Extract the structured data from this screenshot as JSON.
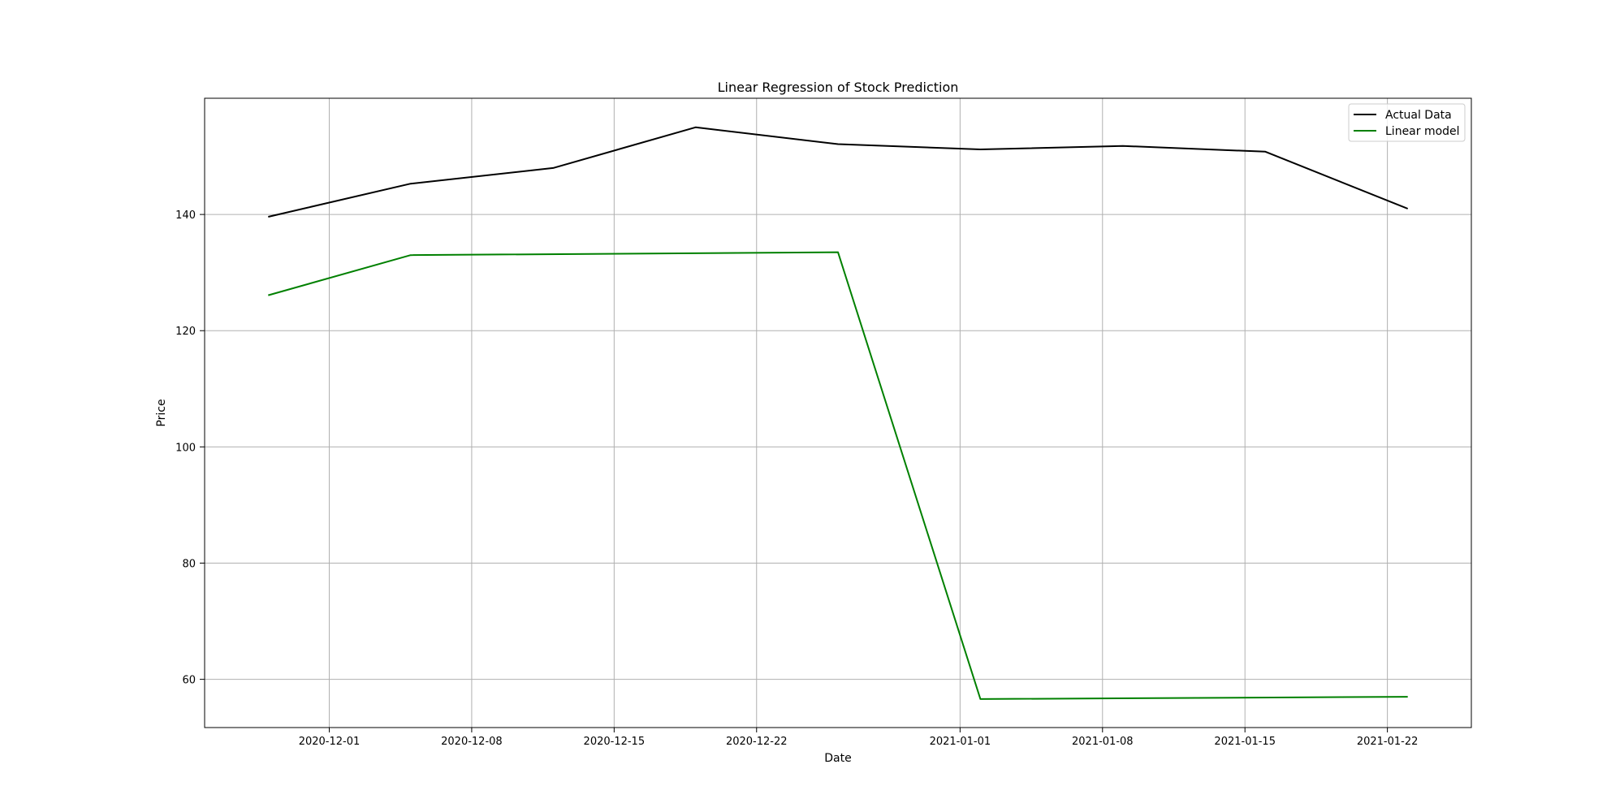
{
  "chart_data": {
    "type": "line",
    "title": "Linear Regression of Stock Prediction",
    "xlabel": "Date",
    "ylabel": "Price",
    "x_ticks": [
      "2020-12-01",
      "2020-12-08",
      "2020-12-15",
      "2020-12-22",
      "2021-01-01",
      "2021-01-08",
      "2021-01-15",
      "2021-01-22"
    ],
    "y_ticks": [
      60,
      80,
      100,
      120,
      140
    ],
    "xlim": [
      "2020-11-24T21:00",
      "2021-01-26T03:00"
    ],
    "ylim": [
      51.7,
      160.0
    ],
    "grid": true,
    "legend_position": "top-right",
    "series": [
      {
        "name": "Actual Data",
        "color": "#000000",
        "x": [
          "2020-11-28",
          "2020-12-05",
          "2020-12-12",
          "2020-12-19",
          "2020-12-26",
          "2021-01-02",
          "2021-01-09",
          "2021-01-16",
          "2021-01-23"
        ],
        "y": [
          139.6,
          145.3,
          148.0,
          155.0,
          152.1,
          151.2,
          151.8,
          150.8,
          141.0
        ]
      },
      {
        "name": "Linear model",
        "color": "#008000",
        "x": [
          "2020-11-28",
          "2020-12-05",
          "2020-12-26",
          "2021-01-02",
          "2021-01-23"
        ],
        "y": [
          126.1,
          133.0,
          133.5,
          56.6,
          57.0
        ]
      }
    ]
  }
}
